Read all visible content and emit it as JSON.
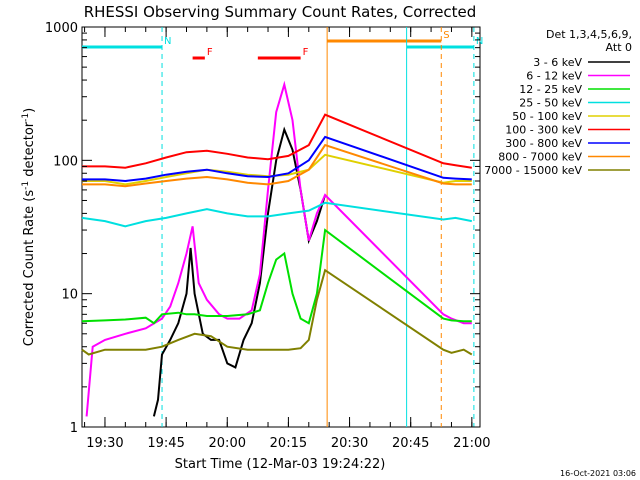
{
  "chart_data": {
    "type": "line",
    "title": "RHESSI Observing Summary Count Rates, Corrected",
    "xlabel": "Start Time (12-Mar-03 19:24:22)",
    "ylabel": "Corrected Count Rate (s⁻¹ detector⁻¹)",
    "ylabel_main": "Corrected Count Rate (s",
    "ylabel_sup1": "-1",
    "ylabel_mid": " detector",
    "ylabel_sup2": "-1",
    "ylabel_end": ")",
    "yscale": "log",
    "ylim": [
      1,
      1000
    ],
    "xlim": [
      "19:24:22",
      "21:02:00"
    ],
    "x_ticks": [
      "19:30",
      "19:45",
      "20:00",
      "20:15",
      "20:30",
      "20:45",
      "21:00"
    ],
    "y_ticks": [
      "1",
      "10",
      "100",
      "1000"
    ],
    "detector_label": [
      "Det 1,3,4,5,6,9,",
      "Att 0"
    ],
    "footer": "16-Oct-2021 03:06",
    "flags": [
      {
        "label": "N",
        "color": "#00e0e0",
        "start": "19:24:22",
        "end": "19:44:00"
      },
      {
        "label": "N",
        "color": "#00e0e0",
        "start": "20:44:00",
        "end": "21:00:30"
      },
      {
        "label": "F",
        "color": "#ff0000",
        "start": "19:51:30",
        "end": "19:54:30"
      },
      {
        "label": "F",
        "color": "#ff0000",
        "start": "20:07:30",
        "end": "20:18:00"
      },
      {
        "label": "S",
        "color": "#ff8800",
        "start": "20:24:30",
        "end": "20:52:30"
      }
    ],
    "vlines": [
      {
        "time": "19:44:00",
        "color": "#00e0e0",
        "style": "dashed"
      },
      {
        "time": "20:24:30",
        "color": "#ff8800",
        "style": "solid"
      },
      {
        "time": "20:44:00",
        "color": "#00e0e0",
        "style": "solid"
      },
      {
        "time": "20:52:30",
        "color": "#ff8800",
        "style": "dashed"
      },
      {
        "time": "21:00:30",
        "color": "#00e0e0",
        "style": "dashed"
      }
    ],
    "series": [
      {
        "name": "3 - 6 keV",
        "color": "#000000",
        "x": [
          "19:42:00",
          "19:43:00",
          "19:44:00",
          "19:46:00",
          "19:48:00",
          "19:50:00",
          "19:51:00",
          "19:52:00",
          "19:54:00",
          "19:56:00",
          "19:58:00",
          "20:00:00",
          "20:02:00",
          "20:04:00",
          "20:06:00",
          "20:08:00",
          "20:10:00",
          "20:12:00",
          "20:14:00",
          "20:16:00",
          "20:18:00",
          "20:20:00",
          "20:22:00",
          "20:24:00"
        ],
        "values": [
          1.2,
          1.6,
          3.5,
          4.5,
          6.0,
          10,
          22,
          10,
          5,
          4.5,
          4.5,
          3.0,
          2.8,
          4.5,
          6.0,
          12,
          40,
          100,
          170,
          120,
          60,
          25,
          35,
          55
        ]
      },
      {
        "name": "6 - 12 keV",
        "color": "#ff00ff",
        "x": [
          "19:25:30",
          "19:27:00",
          "19:30:00",
          "19:35:00",
          "19:40:00",
          "19:44:00",
          "19:46:00",
          "19:48:00",
          "19:50:00",
          "19:51:30",
          "19:53:00",
          "19:55:00",
          "19:58:00",
          "20:00:00",
          "20:03:00",
          "20:06:00",
          "20:08:00",
          "20:10:00",
          "20:12:00",
          "20:14:00",
          "20:16:00",
          "20:18:00",
          "20:20:00",
          "20:22:00",
          "20:24:00",
          "20:53:00",
          "20:55:00",
          "20:58:00",
          "21:00:00"
        ],
        "values": [
          1.2,
          4.0,
          4.5,
          5.0,
          5.5,
          6.5,
          8.0,
          12,
          20,
          32,
          12,
          9,
          7,
          6.5,
          6.5,
          7.5,
          14,
          60,
          230,
          370,
          200,
          60,
          25,
          40,
          55,
          7.0,
          6.5,
          6.0,
          6.0
        ]
      },
      {
        "name": "12 - 25 keV",
        "color": "#00e000",
        "x": [
          "19:24:22",
          "19:30:00",
          "19:35:00",
          "19:40:00",
          "19:42:00",
          "19:44:00",
          "19:48:00",
          "19:50:00",
          "19:52:00",
          "19:55:00",
          "20:00:00",
          "20:05:00",
          "20:08:00",
          "20:10:00",
          "20:12:00",
          "20:14:00",
          "20:16:00",
          "20:18:00",
          "20:20:00",
          "20:22:00",
          "20:24:00",
          "20:53:00",
          "20:55:00",
          "20:58:00",
          "21:00:00"
        ],
        "values": [
          6.2,
          6.3,
          6.4,
          6.6,
          6.0,
          7.0,
          7.2,
          7.0,
          7.0,
          6.8,
          6.8,
          7.0,
          7.5,
          12,
          18,
          20,
          10,
          6.5,
          6.0,
          10,
          30,
          6.5,
          6.3,
          6.2,
          6.2
        ]
      },
      {
        "name": "25 - 50 keV",
        "color": "#00e0e0",
        "x": [
          "19:24:22",
          "19:30:00",
          "19:35:00",
          "19:40:00",
          "19:45:00",
          "19:50:00",
          "19:55:00",
          "20:00:00",
          "20:05:00",
          "20:10:00",
          "20:15:00",
          "20:20:00",
          "20:24:00",
          "20:53:00",
          "20:56:00",
          "21:00:00"
        ],
        "values": [
          37,
          35,
          32,
          35,
          37,
          40,
          43,
          40,
          38,
          38,
          40,
          42,
          48,
          36,
          37,
          35
        ]
      },
      {
        "name": "50 - 100 keV",
        "color": "#e0d000",
        "x": [
          "19:24:22",
          "19:30:00",
          "19:35:00",
          "19:40:00",
          "19:45:00",
          "19:50:00",
          "19:55:00",
          "20:00:00",
          "20:05:00",
          "20:10:00",
          "20:15:00",
          "20:20:00",
          "20:24:00",
          "20:53:00",
          "20:56:00",
          "21:00:00"
        ],
        "values": [
          70,
          70,
          66,
          70,
          75,
          80,
          85,
          82,
          78,
          76,
          78,
          85,
          110,
          68,
          70,
          70
        ]
      },
      {
        "name": "100 - 300 keV",
        "color": "#ff0000",
        "x": [
          "19:24:22",
          "19:30:00",
          "19:35:00",
          "19:40:00",
          "19:45:00",
          "19:50:00",
          "19:55:00",
          "20:00:00",
          "20:05:00",
          "20:10:00",
          "20:15:00",
          "20:20:00",
          "20:24:00",
          "20:53:00",
          "20:56:00",
          "21:00:00"
        ],
        "values": [
          90,
          90,
          88,
          95,
          105,
          115,
          118,
          112,
          105,
          102,
          108,
          130,
          220,
          95,
          92,
          88
        ]
      },
      {
        "name": "300 - 800 keV",
        "color": "#0000ff",
        "x": [
          "19:24:22",
          "19:30:00",
          "19:35:00",
          "19:40:00",
          "19:45:00",
          "19:50:00",
          "19:55:00",
          "20:00:00",
          "20:05:00",
          "20:10:00",
          "20:15:00",
          "20:20:00",
          "20:24:00",
          "20:53:00",
          "20:56:00",
          "21:00:00"
        ],
        "values": [
          72,
          72,
          70,
          73,
          78,
          82,
          85,
          80,
          76,
          75,
          80,
          100,
          150,
          74,
          73,
          72
        ]
      },
      {
        "name": "800 - 7000 keV",
        "color": "#ff8800",
        "x": [
          "19:24:22",
          "19:30:00",
          "19:35:00",
          "19:40:00",
          "19:45:00",
          "19:50:00",
          "19:55:00",
          "20:00:00",
          "20:05:00",
          "20:10:00",
          "20:15:00",
          "20:20:00",
          "20:24:00",
          "20:53:00",
          "20:56:00",
          "21:00:00"
        ],
        "values": [
          66,
          66,
          64,
          67,
          70,
          73,
          75,
          72,
          68,
          66,
          70,
          85,
          130,
          67,
          66,
          66
        ]
      },
      {
        "name": "7000 - 15000 keV",
        "color": "#808000",
        "x": [
          "19:24:22",
          "19:26:00",
          "19:30:00",
          "19:35:00",
          "19:40:00",
          "19:44:00",
          "19:48:00",
          "19:52:00",
          "19:56:00",
          "20:00:00",
          "20:05:00",
          "20:10:00",
          "20:15:00",
          "20:18:00",
          "20:20:00",
          "20:22:00",
          "20:24:00",
          "20:53:00",
          "20:55:00",
          "20:58:00",
          "21:00:00"
        ],
        "values": [
          3.8,
          3.5,
          3.8,
          3.8,
          3.8,
          4.0,
          4.5,
          5.0,
          4.8,
          4.0,
          3.8,
          3.8,
          3.8,
          3.9,
          4.5,
          9,
          15,
          3.8,
          3.6,
          3.8,
          3.5
        ]
      }
    ]
  }
}
